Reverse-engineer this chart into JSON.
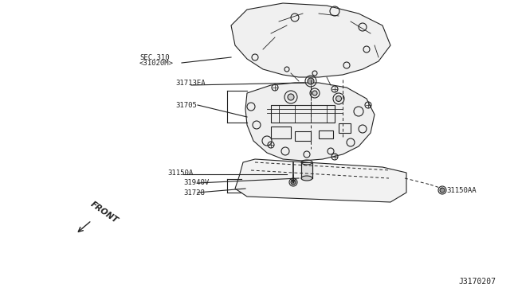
{
  "bg_color": "#ffffff",
  "line_color": "#222222",
  "diagram_id": "J3170207",
  "labels": {
    "sec310": "SEC.310",
    "sec310_sub": "<31020M>",
    "part_31713EA": "31713EA",
    "part_31705": "31705",
    "part_31150A": "31150A",
    "part_31940V": "31940V",
    "part_31728": "31728",
    "part_31150AA": "31150AA",
    "front": "FRONT"
  },
  "font_size_small": 6.5,
  "font_size_diagram_id": 7
}
